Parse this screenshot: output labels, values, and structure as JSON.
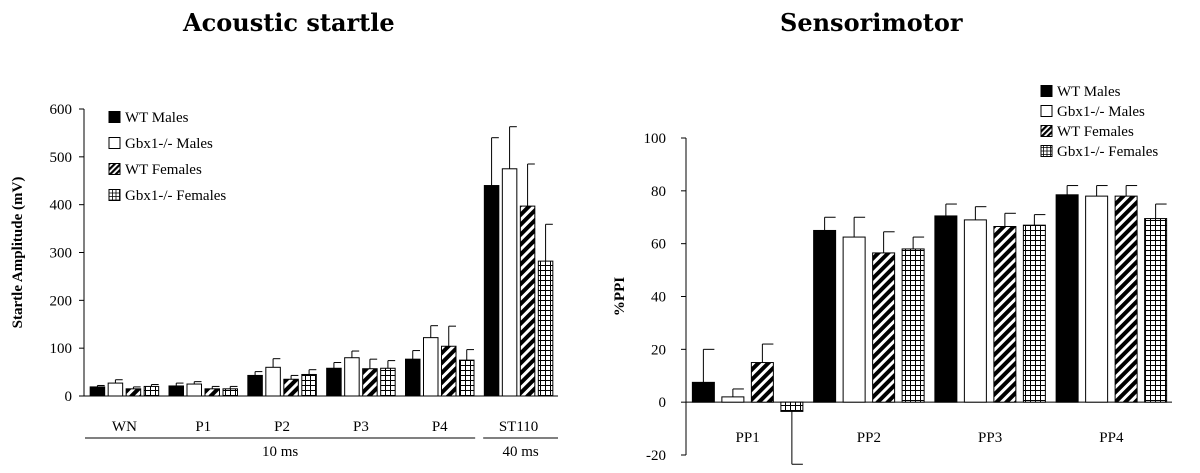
{
  "chart_data": [
    {
      "type": "bar",
      "title": "Acoustic startle",
      "ylabel": "Startle Amplitude (mV)",
      "xlabel": "",
      "ylim": [
        0,
        600
      ],
      "yticks": [
        0,
        100,
        200,
        300,
        400,
        500,
        600
      ],
      "categories": [
        "WN",
        "P1",
        "P2",
        "P3",
        "P4",
        "ST110"
      ],
      "group_labels": [
        {
          "label": "10 ms",
          "span": [
            "WN",
            "P4"
          ]
        },
        {
          "label": "40 ms",
          "span": [
            "ST110"
          ]
        }
      ],
      "legend_position": "top-left",
      "series": [
        {
          "name": "WT Males",
          "pattern": "solid-black",
          "values": [
            19,
            21,
            43,
            58,
            77,
            440
          ],
          "errors": [
            3,
            6,
            8,
            12,
            18,
            100
          ]
        },
        {
          "name": "Gbx1-/- Males",
          "pattern": "white",
          "values": [
            27,
            25,
            60,
            80,
            122,
            475
          ],
          "errors": [
            7,
            5,
            18,
            14,
            25,
            88
          ]
        },
        {
          "name": "WT Females",
          "pattern": "diagonal-stripes",
          "values": [
            15,
            15,
            35,
            57,
            104,
            397
          ],
          "errors": [
            4,
            5,
            8,
            20,
            42,
            88
          ]
        },
        {
          "name": "Gbx1-/- Females",
          "pattern": "grid",
          "values": [
            20,
            15,
            45,
            58,
            75,
            282
          ],
          "errors": [
            4,
            5,
            10,
            16,
            22,
            77
          ]
        }
      ]
    },
    {
      "type": "bar",
      "title": "Sensorimotor",
      "ylabel": "%PPI",
      "xlabel": "",
      "ylim": [
        -20,
        100
      ],
      "yticks": [
        -20,
        0,
        20,
        40,
        60,
        80,
        100
      ],
      "categories": [
        "PP1",
        "PP2",
        "PP3",
        "PP4"
      ],
      "legend_position": "top-right",
      "series": [
        {
          "name": "WT Males",
          "pattern": "solid-black",
          "values": [
            7.5,
            65,
            70.5,
            78.5
          ],
          "errors": [
            12.5,
            5,
            4.5,
            3.5
          ]
        },
        {
          "name": "Gbx1-/- Males",
          "pattern": "white",
          "values": [
            2,
            62.5,
            69,
            78
          ],
          "errors": [
            3,
            7.5,
            5,
            4
          ]
        },
        {
          "name": "WT Females",
          "pattern": "diagonal-stripes",
          "values": [
            15,
            56.5,
            66.5,
            78
          ],
          "errors": [
            7,
            8,
            5,
            4
          ]
        },
        {
          "name": "Gbx1-/- Females",
          "pattern": "grid",
          "values": [
            -3.5,
            58,
            67,
            69.5
          ],
          "errors": [
            20,
            4.5,
            4,
            5.5
          ]
        }
      ]
    }
  ]
}
